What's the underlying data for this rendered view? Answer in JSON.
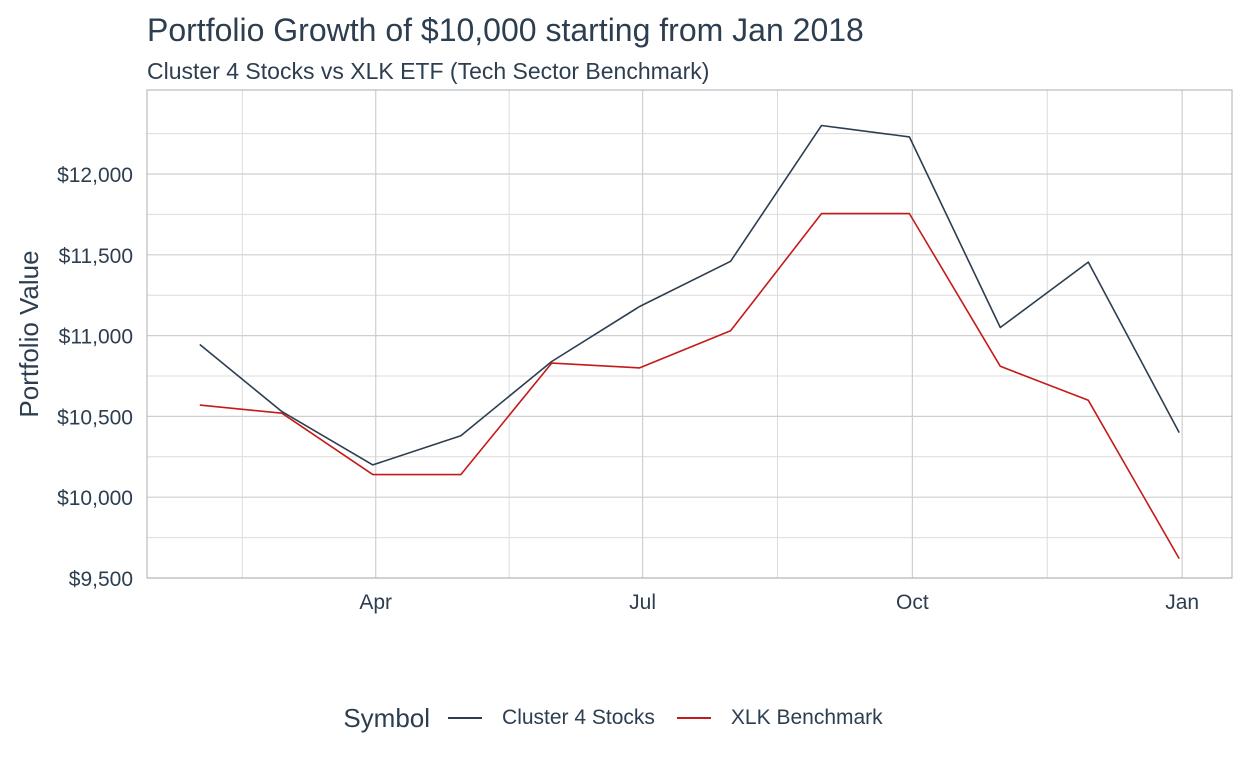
{
  "chart_data": {
    "type": "line",
    "title": "Portfolio Growth of $10,000 starting from Jan 2018",
    "subtitle": "Cluster 4 Stocks vs XLK ETF (Tech Sector Benchmark)",
    "xlabel": "",
    "ylabel": "Portfolio Value",
    "x": [
      "2018-01-31",
      "2018-02-28",
      "2018-03-31",
      "2018-04-30",
      "2018-05-31",
      "2018-06-30",
      "2018-07-31",
      "2018-08-31",
      "2018-09-30",
      "2018-10-31",
      "2018-11-30",
      "2018-12-31"
    ],
    "x_ticks": [
      {
        "date": "2018-04-01",
        "label": "Apr"
      },
      {
        "date": "2018-07-01",
        "label": "Jul"
      },
      {
        "date": "2018-10-01",
        "label": "Oct"
      },
      {
        "date": "2019-01-01",
        "label": "Jan"
      }
    ],
    "xlim": [
      "2018-01-13",
      "2019-01-18"
    ],
    "ylim": [
      9500,
      12520
    ],
    "y_ticks": [
      9500,
      10000,
      10500,
      11000,
      11500,
      12000
    ],
    "y_tick_labels": [
      "$9,500",
      "$10,000",
      "$10,500",
      "$11,000",
      "$11,500",
      "$12,000"
    ],
    "grid": true,
    "legend_title": "Symbol",
    "legend_position": "bottom",
    "series": [
      {
        "name": "Cluster 4 Stocks",
        "color": "#2c3e50",
        "values": [
          10945,
          10530,
          10200,
          10380,
          10840,
          11180,
          11460,
          12300,
          12230,
          11050,
          11455,
          10400
        ]
      },
      {
        "name": "XLK Benchmark",
        "color": "#c41a1a",
        "values": [
          10570,
          10520,
          10140,
          10140,
          10830,
          10800,
          11030,
          11755,
          11755,
          10810,
          10600,
          9620
        ]
      }
    ]
  }
}
